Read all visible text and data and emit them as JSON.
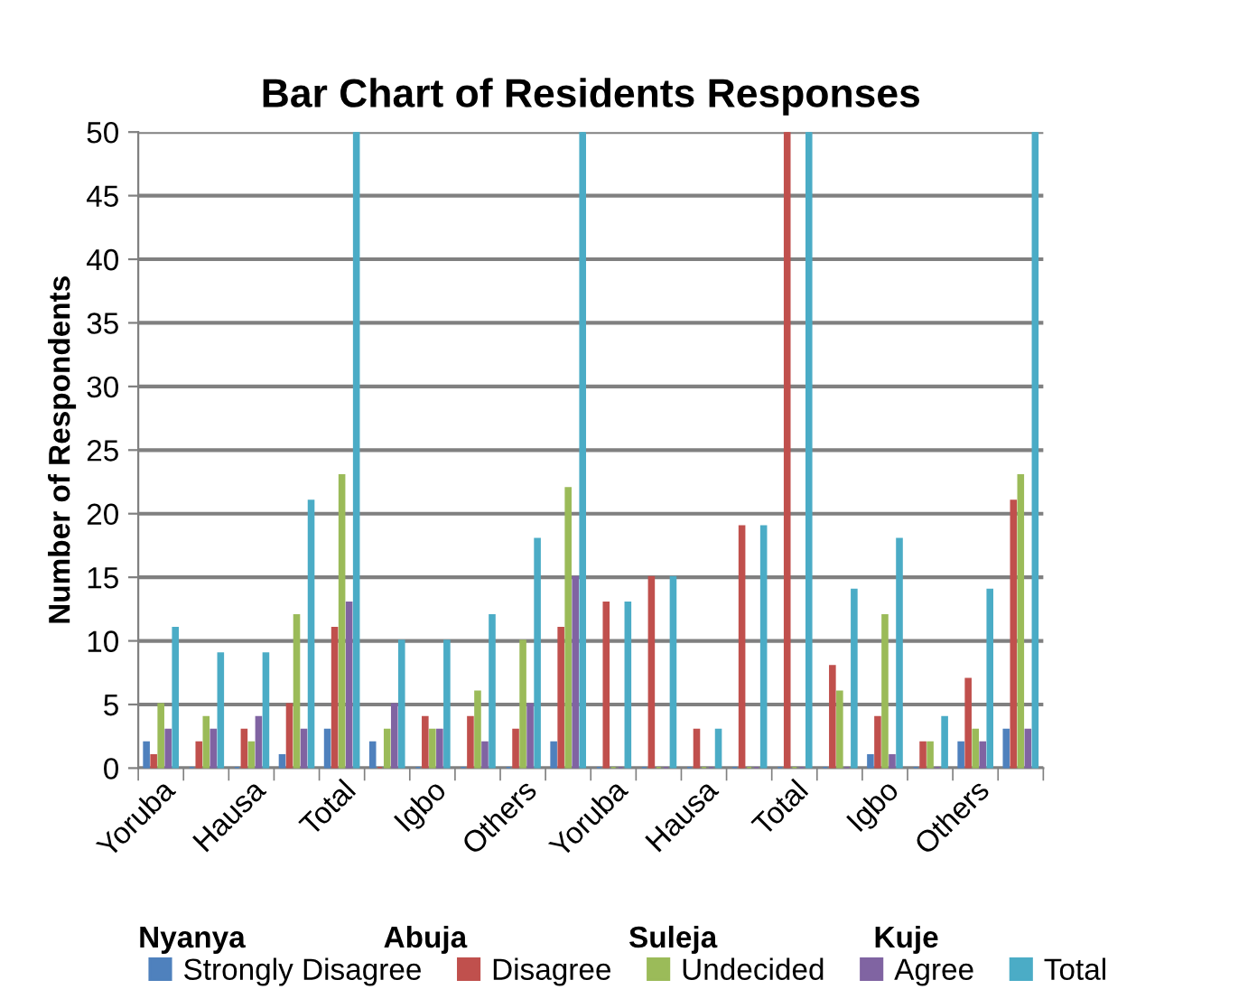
{
  "chart_data": {
    "type": "bar",
    "title": "Bar Chart of Residents Responses",
    "ylabel": "Number of Respondents",
    "categories": [
      "Yoruba",
      null,
      "Hausa",
      null,
      "Total",
      null,
      "Igbo",
      null,
      "Others",
      null,
      "Yoruba",
      null,
      "Hausa",
      null,
      "Total",
      null,
      "Igbo",
      null,
      "Others",
      null
    ],
    "series": [
      {
        "name": "Strongly Disagree",
        "color": "#4f81bd",
        "values": [
          2,
          0,
          0,
          1,
          3,
          2,
          0,
          0,
          0,
          2,
          0,
          0,
          0,
          0,
          0,
          0,
          1,
          0,
          2,
          3
        ]
      },
      {
        "name": "Disagree",
        "color": "#c0504d",
        "values": [
          1,
          2,
          3,
          5,
          11,
          0,
          4,
          4,
          3,
          11,
          13,
          15,
          3,
          19,
          50,
          8,
          4,
          2,
          7,
          21
        ]
      },
      {
        "name": "Undecided",
        "color": "#9bbb59",
        "values": [
          5,
          4,
          2,
          12,
          23,
          3,
          3,
          6,
          10,
          22,
          0,
          0,
          0,
          0,
          0,
          6,
          12,
          2,
          3,
          23
        ]
      },
      {
        "name": "Agree",
        "color": "#8064a2",
        "values": [
          3,
          3,
          4,
          3,
          13,
          5,
          3,
          2,
          5,
          15,
          0,
          0,
          0,
          0,
          0,
          0,
          1,
          0,
          2,
          3
        ]
      },
      {
        "name": "Total",
        "color": "#4bacc6",
        "values": [
          11,
          9,
          9,
          21,
          50,
          10,
          10,
          12,
          18,
          50,
          13,
          15,
          3,
          19,
          50,
          14,
          18,
          4,
          14,
          50
        ]
      }
    ],
    "ylim": [
      0,
      50
    ],
    "yticks": [
      0,
      5,
      10,
      15,
      20,
      25,
      30,
      35,
      40,
      45,
      50
    ],
    "grid": "y",
    "legend": "bottom",
    "annotations": [
      "Nyanya",
      "Abuja",
      "Suleja",
      "Kuje"
    ]
  }
}
